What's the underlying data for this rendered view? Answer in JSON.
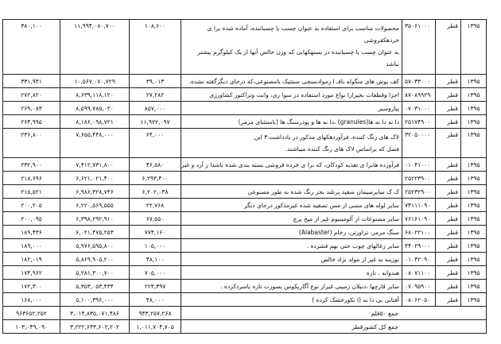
{
  "rows": [
    {
      "year": "۱۳۹۵",
      "country": "قطر",
      "code": "۳۵۰۶۱۰۰۰",
      "desc": [
        "محصولات مناسب برای استفاده به عنوان چسب یا چسباننده، آماده شده برا ی",
        "خردهکفروشی",
        "به عنوان چسب یا چسباننده در بستهکهایی که وزن خالص آنها از یک کیلوگرم بیشتر",
        "نباشد"
      ],
      "c3": "۱۰۸,۶۰۰",
      "c2": "۱۱,۹۹۴,۰۸۰,۷۰۰",
      "c1": "۳۸۰,۱۰۰"
    },
    {
      "year": "۱۳۹۵",
      "country": "قطر",
      "code": "۵۷۰۳۳۰۰۰",
      "desc": [
        "کف پوش های منگوله بافـ ا زموادنسجی سنتتیک یامصنوعی،که درجای دیگرگفته نشده."
      ],
      "c3": "۳۹,۰۱۳",
      "c2": "۱۰,۵۶۷,۰۷۰,۷۲۹",
      "c1": "۳۳۱,۹۴۱"
    },
    {
      "year": "۱۳۹۵",
      "country": "قطر",
      "code": "۸۷۰۸۹۹۲۹",
      "desc": [
        "اجزا وقطعات بخیرازا نواع مورد استفاده در سوا ری، وانت وتراکتور کشاورزی"
      ],
      "c3": "۲۷,۲۸۲",
      "c2": "۸,۶۳۹,۱۱۸,۱۲۰",
      "c1": "۲۷۲,۸۲۰"
    },
    {
      "year": "۱۳۹۵",
      "country": "قطر",
      "code": "۰۷۰۳۱۰۰۰",
      "desc": [
        "پیازوسیر"
      ],
      "c3": "۸۵۷,۰۰۰",
      "c2": "۸,۵۹۹,۷۸۵,۰۲۰",
      "c1": "۲۶۹,۰۸۳"
    },
    {
      "year": "۱۳۹۵",
      "country": "قطر",
      "code": "۲۵۱۷۴۹۰۰",
      "desc": [
        "دا نه دا نه ها(granules) ،دا نه ها و پودرسنگ ها (باستثنای مرمر)"
      ],
      "c3": "۱۱,۹۲۲,۰۹۷",
      "c2": "۸,۱۸۶,۰۹۸,۷۲۱",
      "c1": "۲۶۴,۹۹۵"
    },
    {
      "year": "۱۳۹۵",
      "country": "قطر",
      "code": "۳۲۰۵۰۰۰۰",
      "desc": [
        "لاک های رنگ کننده، فرآوردهکهای مذکور در یادداشت ۳ این",
        "فصل که براساس لاک های رنگ کننده میباشند."
      ],
      "c3": "۶۴,۰۰۰",
      "c2": "۷,۶۵۵,۴۴۸,۰۰۰",
      "c1": "۲۳۶,۸۰۰"
    },
    {
      "year": "۱۳۹۵",
      "country": "قطر",
      "code": "۰۱۰۴۱۰۰۰",
      "desc": [
        "فرآورده هابرا ی تغذیه کودکان، که برا ی خرده فروشی بسته بندی شده باشدا ز آرد و غیره"
      ],
      "c3": "۴۶,۵۸۰",
      "c2": "۷,۴۱۲,۷۳۱,۸۰۰",
      "c1": "۲۳۲,۹۰۰"
    },
    {
      "year": "۱۳۹۵",
      "country": "قطر",
      "code": "۲۵۲۲۳۹۰۰",
      "desc": [
        ""
      ],
      "c3": "۶,۲۹۳,۴۰۰",
      "c2": "۶,۶۲۱,۰۲۱,۴۰۰",
      "c1": "۲۱۸,۶۹۶"
    },
    {
      "year": "۱۳۹۵",
      "country": "قطر",
      "code": "۲۵۲۳۲۹۰۰",
      "desc": [
        "ک ک سایرسیمان سفید پرتلند بجز رنگ شده به طور مصنوعی"
      ],
      "c3": "۶,۲۰۲,۰۴۸",
      "c2": "۶,۹۸۶,۳۲۸,۷۳۶",
      "c1": "۲۱۵,۵۲۱"
    },
    {
      "year": "۱۳۹۵",
      "country": "قطر",
      "code": "۷۴۱۱۱۰۹۰",
      "desc": [
        "سایر لوله های مسی از مس تصفیه شده غیرمذکور درجای دیگر"
      ],
      "c3": "۲۲,۷۶۸",
      "c2": "۶,۲۲۰,۵۶۹,۵۵۵",
      "c1": "۲۰۰,۲۰۵"
    },
    {
      "year": "۱۳۹۵",
      "country": "قطر",
      "code": "۷۶۱۶۱۰۹۰",
      "desc": [
        "سایر مصنوعات از آلومینیوم غیر از میخ پرچ"
      ],
      "c3": "۶۷,۵۵۰",
      "c2": "۶,۳۹۸,۲۹۲,۹۱۰",
      "c1": "۲۰۰,۰۹۵"
    },
    {
      "year": "۱۳۹۵",
      "country": "قطر",
      "code": "۶۸۰۲۲۱۰۰",
      "desc": [
        "سنگ مرمر، تراورتن، رخام (Alabaster)"
      ],
      "c3": "۷۷۴,۱۶۰",
      "c2": "۶,۰۲۱,۴۷۵,۲۵۳",
      "c1": "۱۸۹,۴۳۶"
    },
    {
      "year": "۱۳۹۵",
      "country": "قطر",
      "code": "۴۴۰۲۹۰۰۰",
      "desc": [
        "سایر زغالهای چوب حتی بهم فشرده ."
      ],
      "c3": "۱۰۵,۰۰۰",
      "c2": "۵,۹۷۶,۵۹۵,۸۰۰",
      "c1": "۱۸۹,۰۰۰"
    },
    {
      "year": "۱۳۹۵",
      "country": "قطر",
      "code": "۰۱۰۴۲۰۹۰",
      "desc": [
        "بوزینه به غیر از مولد نژاد خالص"
      ],
      "c3": "۴۸,۱۰۰",
      "c2": "۵,۸۶۹,۹۰۵,۲۰۰",
      "c1": "۱۸۲,۰۱۹"
    },
    {
      "year": "۱۳۹۵",
      "country": "قطر",
      "code": "۰۸۰۷۱۱۰۰",
      "desc": [
        "هندوانه ، تازه"
      ],
      "c3": "۷۰۵,۰۰۰",
      "c2": "۵,۲۸۱,۳۰۰,۷۰۰",
      "c1": "۱۷۴,۹۶۲"
    },
    {
      "year": "۱۳۹۵",
      "country": "قطر",
      "code": "۰۷۰۹۵۹۰۰",
      "desc": [
        "سایر قارچها ،دنبلان زمینی غیراز نوع آگاریکوس بصورت تازه یاسردکرده ."
      ],
      "c3": "۲۲۴,۳۹۷",
      "c2": "۵,۳۵۳,۰۵۳,۴۳۴",
      "c1": "۱۷۲,۳۰۰"
    },
    {
      "year": "۱۳۹۵",
      "country": "قطر",
      "code": "۰۸۰۶۲۰۵۰",
      "desc": [
        "آفتابی بی دا نه (ا نکورخشک کرده )"
      ],
      "c3": "۴۸,۰۰۰",
      "c2": "۵,۱۰۰,۳۹۶,۰۰۰",
      "c1": "۱۶۸,۰۰۰"
    }
  ],
  "totals": [
    {
      "label": "جمع ۵۰قلم",
      "c3": "۹۴۳,۲۵۷,۲۶۸",
      "c2": "۳,۰۱۴,۸۳۵,۰۷۱,۴۸۶",
      "c1": "۹۶۳۶۵۲,۲۵۲"
    },
    {
      "label": "جمع کل کشورقطر",
      "c3": "۱,۰۱۱,۷۰۴,۷۰۵",
      "c2": "۳,۲۲۲,۶۴۳,۶۰۲,۲۰۲",
      "c1": "۱۰۳,۰۴۹,۰۹۰"
    }
  ]
}
